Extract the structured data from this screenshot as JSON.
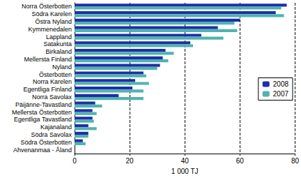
{
  "chart_data": {
    "type": "bar",
    "orientation": "horizontal",
    "x_label": "1 000 TJ",
    "categories": [
      "Norra Österbotten",
      "Södra Karelen",
      "Östra Nyland",
      "Kymmenedalen",
      "Lappland",
      "Satakunta",
      "Birkaland",
      "Mellersta Finland",
      "Nyland",
      "Österbotten",
      "Norra Karelen",
      "Egentliga Finland",
      "Norra Savolax",
      "Päijänne-Tavastland",
      "Mellersta Österbotten",
      "Egentliga Tavastland",
      "Kajanaland",
      "Södra Savolax",
      "Södra Österbotten",
      "Ahvenanmaa - Åland"
    ],
    "series": [
      {
        "name": "2008",
        "color": "#1f2fa8",
        "values": [
          77,
          73,
          60,
          52,
          46,
          42,
          33,
          32,
          31,
          25,
          22,
          21,
          16,
          7.5,
          6.5,
          6.5,
          5,
          5,
          3,
          0
        ]
      },
      {
        "name": "2007",
        "color": "#4fb3b0",
        "values": [
          75,
          76,
          58,
          59,
          54,
          43,
          36,
          34,
          30,
          26,
          27,
          25,
          25,
          10,
          8,
          7,
          8,
          5,
          4,
          0
        ]
      }
    ],
    "xlim": [
      0,
      80
    ],
    "xticks": [
      0,
      20,
      40,
      60,
      80
    ],
    "grid": true,
    "legend": "right"
  }
}
